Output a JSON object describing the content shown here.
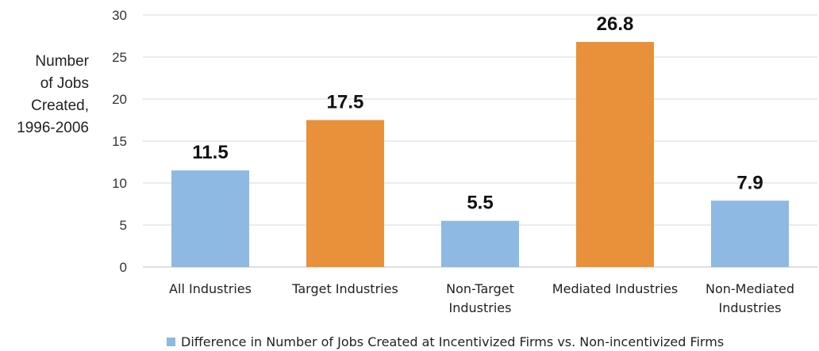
{
  "chart_data": {
    "type": "bar",
    "ylabel": [
      "Number",
      "of Jobs",
      "Created,",
      "1996-2006"
    ],
    "xlabel": "",
    "ylim": [
      0,
      30
    ],
    "yticks": [
      0,
      5,
      10,
      15,
      20,
      25,
      30
    ],
    "grid": true,
    "legend_position": "bottom",
    "categories": [
      [
        "All Industries"
      ],
      [
        "Target Industries"
      ],
      [
        "Non-Target",
        "Industries"
      ],
      [
        "Mediated Industries"
      ],
      [
        "Non-Mediated",
        "Industries"
      ]
    ],
    "series": [
      {
        "name": "Difference in Number of Jobs Created at Incentivized Firms vs. Non-incentivized Firms",
        "values": [
          11.5,
          17.5,
          5.5,
          26.8,
          7.9
        ],
        "labels": [
          "11.5",
          "17.5",
          "5.5",
          "26.8",
          "7.9"
        ],
        "colors": [
          "#8db9e2",
          "#e8913a",
          "#8db9e2",
          "#e8913a",
          "#8db9e2"
        ]
      }
    ],
    "legend_color": "#8db9e2"
  }
}
